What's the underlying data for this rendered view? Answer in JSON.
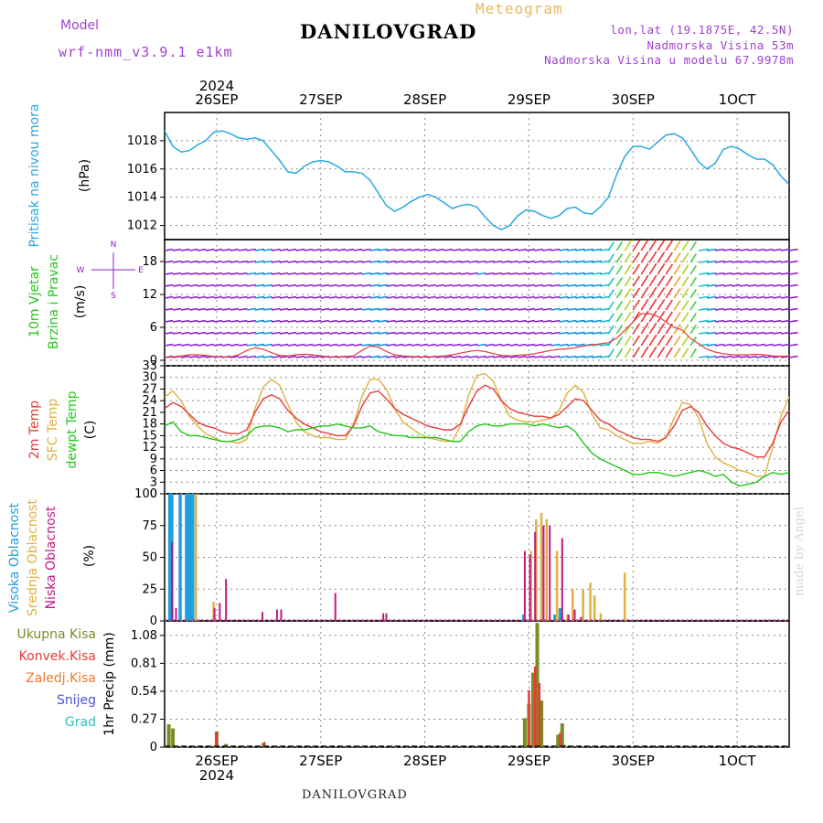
{
  "header": {
    "model_label": "Model",
    "model_name": "wrf-nmm_v3.9.1 e1km",
    "station": "DANILOVGRAD",
    "product": "Meteogram",
    "location_line": "lon,lat (19.1875E, 42.5N)",
    "altitude_line": "Nadmorska Visina 53m",
    "model_altitude_line": "Nadmorska Visina u modelu 67.9978m"
  },
  "footer": {
    "station": "DANILOVGRAD",
    "credit": "made by Angel"
  },
  "colors": {
    "pressure": "#29a8e0",
    "t2m": "#e83a3a",
    "sfc": "#e0b040",
    "dewpoint": "#22c81a",
    "cloud_high": "#1ea0e0",
    "cloud_mid": "#e0b040",
    "cloud_low": "#c01880",
    "precip_total": "#7a8c22",
    "precip_conv": "#e83a3a",
    "precip_strat": "#f07830",
    "snow": "#5050e0",
    "graupel": "#30c0c0",
    "wind_light": "#8a20d0"
  },
  "chart_data": [
    {
      "type": "line",
      "panel": "pressure",
      "ylabel_lines": [
        "Pritisak na nivou mora"
      ],
      "unit": "(hPa)",
      "ylim": [
        1011,
        1020
      ],
      "yticks": [
        1012,
        1014,
        1016,
        1018
      ],
      "x_start_day": 25.5,
      "x_end_day": 31.5,
      "x_days_labels": [
        "26SEP",
        "27SEP",
        "28SEP",
        "29SEP",
        "30SEP",
        "1OCT"
      ],
      "x_year_label": "2024",
      "series": [
        {
          "values": [
            1018.7,
            1017.6,
            1017.2,
            1017.3,
            1017.7,
            1018.0,
            1018.6,
            1018.7,
            1018.5,
            1018.2,
            1018.1,
            1018.2,
            1018.0,
            1017.3,
            1016.6,
            1015.8,
            1015.7,
            1016.2,
            1016.5,
            1016.6,
            1016.5,
            1016.2,
            1015.8,
            1015.8,
            1015.7,
            1015.2,
            1014.3,
            1013.4,
            1013.0,
            1013.3,
            1013.7,
            1014.0,
            1014.2,
            1014.0,
            1013.6,
            1013.2,
            1013.4,
            1013.5,
            1013.3,
            1012.6,
            1012.0,
            1011.7,
            1012.0,
            1012.7,
            1013.1,
            1013.0,
            1012.7,
            1012.5,
            1012.7,
            1013.2,
            1013.3,
            1012.9,
            1012.8,
            1013.3,
            1014.0,
            1015.6,
            1016.9,
            1017.6,
            1017.6,
            1017.4,
            1017.9,
            1018.4,
            1018.5,
            1018.2,
            1017.4,
            1016.5,
            1016.0,
            1016.4,
            1017.4,
            1017.6,
            1017.4,
            1017.0,
            1016.7,
            1016.7,
            1016.3,
            1015.5,
            1014.9
          ]
        }
      ]
    },
    {
      "type": "wind_barbs",
      "panel": "wind",
      "ylabel_lines": [
        "10m Vjetar",
        "Brzina i Pravac"
      ],
      "unit": "(m/s)",
      "compass": [
        "N",
        "W",
        "E",
        "S"
      ],
      "ylim": [
        -1,
        22
      ],
      "yticks": [
        0,
        6,
        12,
        18
      ],
      "speed": [
        0.5,
        0.6,
        0.8,
        1.0,
        1.0,
        0.9,
        0.7,
        0.6,
        0.6,
        1.0,
        1.8,
        2.3,
        2.0,
        1.4,
        0.9,
        0.8,
        1.0,
        1.1,
        1.0,
        0.8,
        0.6,
        0.6,
        0.7,
        0.8,
        1.8,
        2.6,
        2.4,
        1.6,
        1.0,
        0.8,
        0.7,
        0.6,
        0.6,
        0.7,
        0.8,
        1.0,
        1.3,
        1.6,
        1.8,
        1.6,
        1.2,
        0.9,
        0.8,
        0.9,
        1.0,
        1.2,
        1.5,
        1.8,
        2.0,
        2.1,
        2.3,
        2.6,
        2.8,
        3.0,
        3.2,
        4.0,
        5.5,
        7.0,
        8.5,
        8.5,
        8.0,
        7.0,
        6.0,
        5.5,
        4.0,
        3.0,
        2.0,
        1.5,
        1.2,
        1.0,
        1.0,
        1.0,
        1.1,
        1.0,
        0.8,
        0.7,
        0.8
      ]
    },
    {
      "type": "line",
      "panel": "temperature",
      "ylabel_lines": [
        "2m Temp",
        "SFC Temp",
        "dewpt Temp"
      ],
      "unit": "(C)",
      "ylim": [
        0,
        33
      ],
      "yticks": [
        0,
        3,
        6,
        9,
        12,
        15,
        18,
        21,
        24,
        27,
        30,
        33
      ],
      "series": [
        {
          "name": "2m Temp",
          "values": [
            22.0,
            23.5,
            22.5,
            20.5,
            18.5,
            17.5,
            17.0,
            16.0,
            15.5,
            15.5,
            16.5,
            21.0,
            24.5,
            25.5,
            24.5,
            21.5,
            19.5,
            18.0,
            17.0,
            16.0,
            15.5,
            15.0,
            15.0,
            17.5,
            22.5,
            26.0,
            26.5,
            24.5,
            22.0,
            20.5,
            19.5,
            18.5,
            17.5,
            17.0,
            16.5,
            16.5,
            18.0,
            22.5,
            26.5,
            28.0,
            27.0,
            24.0,
            22.0,
            21.0,
            20.5,
            20.0,
            20.0,
            19.5,
            20.5,
            22.5,
            24.5,
            24.0,
            21.5,
            19.0,
            18.0,
            16.5,
            15.5,
            14.5,
            14.0,
            14.0,
            13.5,
            14.5,
            17.5,
            21.5,
            22.5,
            21.0,
            17.5,
            15.0,
            13.0,
            12.0,
            11.5,
            10.5,
            9.5,
            9.5,
            13.0,
            18.5,
            21.5
          ]
        },
        {
          "name": "SFC Temp",
          "values": [
            25.0,
            26.5,
            24.0,
            20.0,
            17.5,
            15.5,
            14.5,
            13.5,
            13.5,
            13.0,
            14.0,
            22.0,
            27.5,
            29.5,
            28.0,
            23.0,
            18.5,
            16.0,
            15.0,
            14.5,
            14.5,
            14.0,
            14.0,
            18.0,
            25.0,
            29.5,
            29.5,
            27.0,
            22.0,
            18.5,
            17.0,
            15.5,
            14.5,
            14.0,
            13.5,
            13.5,
            17.5,
            25.5,
            30.5,
            31.0,
            29.0,
            24.0,
            20.0,
            19.0,
            18.5,
            18.5,
            19.0,
            19.5,
            21.5,
            26.0,
            28.0,
            26.0,
            20.5,
            17.0,
            16.5,
            15.0,
            14.0,
            13.0,
            13.0,
            13.5,
            13.0,
            14.5,
            19.5,
            23.5,
            23.0,
            19.5,
            13.0,
            9.5,
            8.0,
            7.0,
            6.0,
            5.5,
            4.5,
            4.5,
            12.0,
            20.0,
            25.0
          ]
        },
        {
          "name": "dewpt Temp",
          "values": [
            17.5,
            18.5,
            16.0,
            15.0,
            15.0,
            14.5,
            14.0,
            13.5,
            13.5,
            14.0,
            15.0,
            17.0,
            17.5,
            17.5,
            17.0,
            16.0,
            16.5,
            16.5,
            17.0,
            17.5,
            17.5,
            18.0,
            17.5,
            17.0,
            17.0,
            17.5,
            16.0,
            15.5,
            15.0,
            15.0,
            14.5,
            14.5,
            14.5,
            14.5,
            14.0,
            13.5,
            13.5,
            16.0,
            17.5,
            18.0,
            17.5,
            17.5,
            18.0,
            18.0,
            18.0,
            17.5,
            18.0,
            17.5,
            17.0,
            17.5,
            16.0,
            13.0,
            10.5,
            9.0,
            8.0,
            7.0,
            6.0,
            5.0,
            5.0,
            5.5,
            5.5,
            5.0,
            4.5,
            5.0,
            5.5,
            6.0,
            5.5,
            4.5,
            5.0,
            3.0,
            2.0,
            2.5,
            3.0,
            4.5,
            5.5,
            5.0,
            5.5
          ]
        }
      ]
    },
    {
      "type": "bar",
      "panel": "clouds",
      "ylabel_lines": [
        "Visoka Oblacnost",
        "Srednja Oblacnost",
        "Niska Oblacnost"
      ],
      "unit": "(%)",
      "ylim": [
        0,
        100
      ],
      "yticks": [
        0,
        25,
        50,
        75,
        100
      ],
      "series": [
        {
          "name": "Visoka Oblacnost",
          "points": [
            [
              25.55,
              100
            ],
            [
              25.57,
              100
            ],
            [
              25.65,
              100
            ],
            [
              25.71,
              100
            ],
            [
              25.73,
              100
            ],
            [
              25.75,
              100
            ],
            [
              25.77,
              100
            ],
            [
              28.95,
              5
            ],
            [
              29.25,
              5
            ],
            [
              29.3,
              10
            ]
          ]
        },
        {
          "name": "Srednja Oblacnost",
          "points": [
            [
              25.8,
              100
            ],
            [
              25.97,
              15
            ],
            [
              29.02,
              55
            ],
            [
              29.07,
              80
            ],
            [
              29.12,
              85
            ],
            [
              29.17,
              80
            ],
            [
              29.27,
              55
            ],
            [
              29.37,
              5
            ],
            [
              29.42,
              25
            ],
            [
              29.52,
              25
            ],
            [
              29.59,
              30
            ],
            [
              29.63,
              20
            ],
            [
              29.69,
              6
            ],
            [
              29.92,
              38
            ]
          ]
        },
        {
          "name": "Niska Oblacnost",
          "points": [
            [
              25.57,
              62
            ],
            [
              25.61,
              10
            ],
            [
              25.98,
              10
            ],
            [
              26.03,
              14
            ],
            [
              26.09,
              33
            ],
            [
              26.44,
              7
            ],
            [
              26.58,
              9
            ],
            [
              26.62,
              9
            ],
            [
              27.14,
              22
            ],
            [
              27.6,
              6
            ],
            [
              27.63,
              6
            ],
            [
              28.96,
              55
            ],
            [
              29.01,
              52
            ],
            [
              29.06,
              70
            ],
            [
              29.14,
              75
            ],
            [
              29.2,
              75
            ],
            [
              29.32,
              65
            ],
            [
              29.38,
              5
            ],
            [
              29.44,
              9
            ],
            [
              29.5,
              3
            ]
          ]
        }
      ]
    },
    {
      "type": "bar",
      "panel": "precipitation",
      "ylabel": "1hr Precip (mm)",
      "ylim": [
        0,
        1.22
      ],
      "yticks": [
        0,
        0.27,
        0.54,
        0.81,
        1.08
      ],
      "legend": [
        "Ukupna Kisa",
        "Konvek.Kisa",
        "Zaledj.Kisa",
        "Snijeg",
        "Grad"
      ],
      "series": [
        {
          "name": "Ukupna Kisa",
          "points": [
            [
              25.54,
              0.22
            ],
            [
              25.58,
              0.18
            ],
            [
              26.0,
              0.15
            ],
            [
              26.09,
              0.03
            ],
            [
              26.45,
              0.04
            ],
            [
              28.96,
              0.28
            ],
            [
              29.0,
              0.42
            ],
            [
              29.04,
              0.72
            ],
            [
              29.08,
              1.2
            ],
            [
              29.12,
              0.45
            ],
            [
              29.28,
              0.12
            ],
            [
              29.32,
              0.23
            ],
            [
              29.34,
              0.02
            ]
          ]
        },
        {
          "name": "Konvek.Kisa",
          "points": [
            [
              26.0,
              0.14
            ],
            [
              26.46,
              0.05
            ],
            [
              29.0,
              0.55
            ],
            [
              29.06,
              0.78
            ],
            [
              29.1,
              0.62
            ],
            [
              29.3,
              0.14
            ]
          ]
        }
      ],
      "x_days_labels": [
        "26SEP",
        "27SEP",
        "28SEP",
        "29SEP",
        "30SEP",
        "1OCT"
      ],
      "x_year_label": "2024"
    }
  ]
}
